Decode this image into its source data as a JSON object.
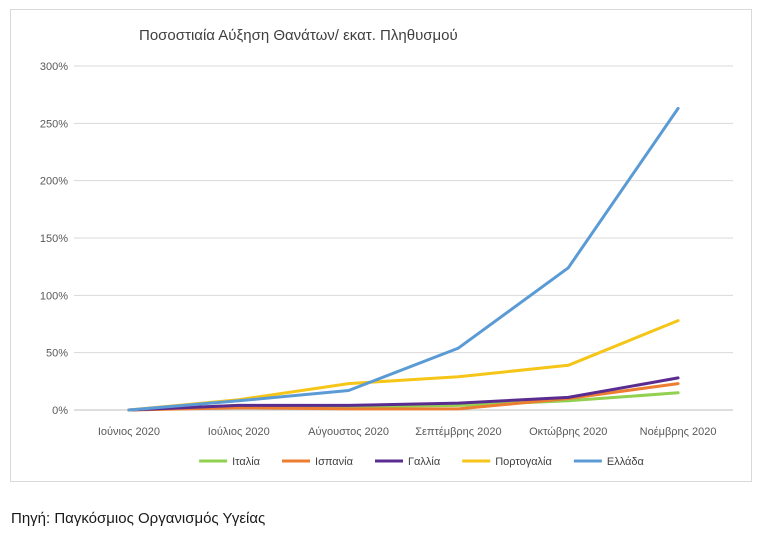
{
  "chart_data": {
    "type": "line",
    "title": "Ποσοστιαία Αύξηση Θανάτων/ εκατ. Πληθυσμού",
    "xlabel": "",
    "ylabel": "",
    "categories": [
      "Ιούνιος 2020",
      "Ιούλιος 2020",
      "Αύγουστος 2020",
      "Σεπτέμβρης 2020",
      "Οκτώβρης 2020",
      "Νοέμβρης 2020"
    ],
    "yticks": [
      "0%",
      "50%",
      "100%",
      "150%",
      "200%",
      "250%",
      "300%"
    ],
    "ylim": [
      0,
      300
    ],
    "grid": true,
    "legend_position": "bottom",
    "series": [
      {
        "name": "Ιταλία",
        "color": "#92d050",
        "values": [
          0,
          4,
          3,
          4,
          8,
          15
        ]
      },
      {
        "name": "Ισπανία",
        "color": "#ed7d31",
        "values": [
          0,
          2,
          1,
          1,
          10,
          23
        ]
      },
      {
        "name": "Γαλλία",
        "color": "#5b2c8f",
        "values": [
          0,
          4,
          4,
          6,
          11,
          28
        ]
      },
      {
        "name": "Πορτογαλία",
        "color": "#f5c518",
        "values": [
          0,
          9,
          23,
          29,
          39,
          78
        ]
      },
      {
        "name": "Ελλάδα",
        "color": "#5b9bd5",
        "values": [
          0,
          8,
          17,
          54,
          124,
          263
        ]
      }
    ]
  },
  "source": "Πηγή: Παγκόσμιος Οργανισμός Υγείας"
}
